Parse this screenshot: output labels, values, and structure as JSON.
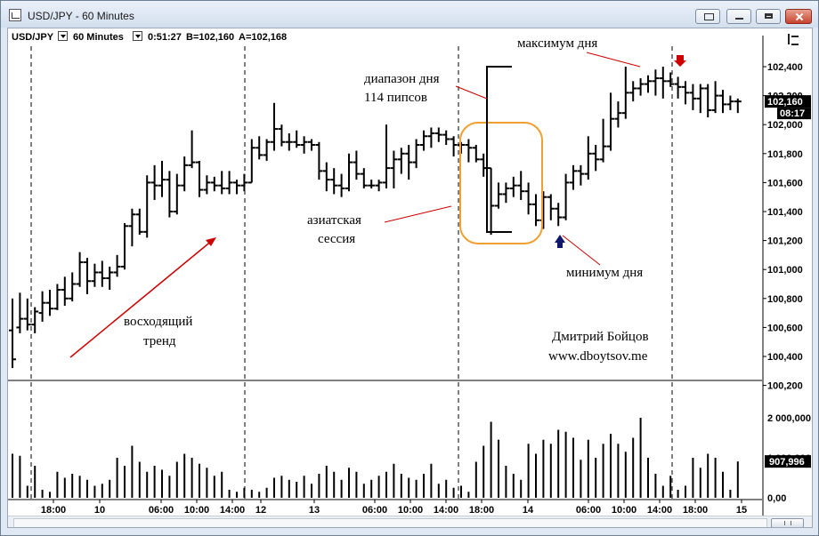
{
  "window": {
    "title": "USD/JPY - 60 Minutes"
  },
  "toolbar": {
    "symbol": "USD/JPY",
    "interval": "60 Minutes",
    "timer": "0:51:27",
    "bid": "B=102,160",
    "ask": "A=102,168",
    "settings_icon": "chart-properties-icon"
  },
  "price_axis": {
    "labels": [
      "102,400",
      "102,200",
      "102,000",
      "101,800",
      "101,600",
      "101,400",
      "101,200",
      "101,000",
      "100,800",
      "100,600",
      "100,400",
      "100,200"
    ],
    "current_price": "102,160",
    "countdown": "08:17"
  },
  "volume_axis": {
    "labels": [
      "2 000,000",
      "1 000,000",
      "0,00"
    ],
    "current_volume": "907,996"
  },
  "time_axis": {
    "labels": [
      "18:00",
      "10",
      "06:00",
      "10:00",
      "14:00",
      "12",
      "13",
      "06:00",
      "10:00",
      "14:00",
      "18:00",
      "14",
      "06:00",
      "10:00",
      "14:00",
      "18:00",
      "15"
    ]
  },
  "annotations": {
    "day_high": "максимум дня",
    "day_range_line1": "диапазон дня",
    "day_range_line2": "114 пипсов",
    "asian_line1": "азиатская",
    "asian_line2": "сессия",
    "day_low": "минимум дня",
    "trend_line1": "восходящий",
    "trend_line2": "тренд",
    "author": "Дмитрий Бойцов",
    "site": "www.dboytsov.me"
  },
  "colors": {
    "arrow_red": "#cc0000",
    "arrow_navy": "#10186a",
    "session_box": "#f0a030"
  },
  "chart_data": {
    "type": "bar",
    "subtype": "ohlc-with-volume",
    "symbol": "USD/JPY",
    "interval": "60 Minutes",
    "price_ylim": [
      100.2,
      102.5
    ],
    "volume_ylim": [
      0,
      2500000
    ],
    "bars": [
      [
        100.58,
        100.8,
        100.32,
        100.38,
        1100000
      ],
      [
        100.6,
        100.84,
        100.56,
        100.66,
        1050000
      ],
      [
        100.66,
        100.8,
        100.58,
        100.62,
        300000
      ],
      [
        100.62,
        100.74,
        100.56,
        100.71,
        800000
      ],
      [
        100.7,
        100.85,
        100.64,
        100.77,
        200000
      ],
      [
        100.77,
        100.86,
        100.68,
        100.73,
        150000
      ],
      [
        100.73,
        100.9,
        100.72,
        100.86,
        650000
      ],
      [
        100.86,
        100.95,
        100.75,
        100.8,
        500000
      ],
      [
        100.8,
        100.98,
        100.78,
        100.9,
        600000
      ],
      [
        100.9,
        101.12,
        100.88,
        101.05,
        550000
      ],
      [
        101.05,
        101.08,
        100.83,
        100.92,
        450000
      ],
      [
        100.92,
        101.04,
        100.88,
        100.98,
        300000
      ],
      [
        100.98,
        101.06,
        100.88,
        100.94,
        350000
      ],
      [
        100.94,
        101.02,
        100.86,
        100.98,
        450000
      ],
      [
        100.98,
        101.1,
        100.95,
        101.02,
        1000000
      ],
      [
        101.02,
        101.32,
        101.0,
        101.3,
        800000
      ],
      [
        101.3,
        101.42,
        101.16,
        101.38,
        1300000
      ],
      [
        101.38,
        101.42,
        101.24,
        101.26,
        900000
      ],
      [
        101.26,
        101.65,
        101.22,
        101.6,
        650000
      ],
      [
        101.6,
        101.72,
        101.48,
        101.58,
        800000
      ],
      [
        101.58,
        101.75,
        101.5,
        101.62,
        700000
      ],
      [
        101.62,
        101.68,
        101.36,
        101.4,
        550000
      ],
      [
        101.4,
        101.66,
        101.38,
        101.58,
        900000
      ],
      [
        101.58,
        101.78,
        101.54,
        101.72,
        1100000
      ],
      [
        101.72,
        101.96,
        101.7,
        101.74,
        1000000
      ],
      [
        101.74,
        101.75,
        101.5,
        101.55,
        850000
      ],
      [
        101.55,
        101.65,
        101.52,
        101.6,
        750000
      ],
      [
        101.6,
        101.64,
        101.54,
        101.58,
        550000
      ],
      [
        101.58,
        101.68,
        101.52,
        101.56,
        650000
      ],
      [
        101.56,
        101.68,
        101.52,
        101.6,
        200000
      ],
      [
        101.6,
        101.62,
        101.52,
        101.58,
        150000
      ],
      [
        101.58,
        101.66,
        101.54,
        101.6,
        250000
      ],
      [
        101.6,
        101.9,
        101.6,
        101.84,
        200000
      ],
      [
        101.84,
        101.92,
        101.76,
        101.79,
        150000
      ],
      [
        101.79,
        101.9,
        101.75,
        101.88,
        250000
      ],
      [
        101.88,
        102.15,
        101.82,
        101.97,
        500000
      ],
      [
        101.97,
        102.0,
        101.85,
        101.88,
        550000
      ],
      [
        101.88,
        101.94,
        101.82,
        101.88,
        450000
      ],
      [
        101.88,
        101.96,
        101.84,
        101.86,
        400000
      ],
      [
        101.86,
        101.92,
        101.8,
        101.88,
        550000
      ],
      [
        101.88,
        101.9,
        101.82,
        101.86,
        350000
      ],
      [
        101.86,
        101.88,
        101.62,
        101.68,
        600000
      ],
      [
        101.68,
        101.74,
        101.54,
        101.62,
        800000
      ],
      [
        101.62,
        101.7,
        101.52,
        101.58,
        650000
      ],
      [
        101.58,
        101.66,
        101.5,
        101.56,
        450000
      ],
      [
        101.56,
        101.8,
        101.54,
        101.74,
        750000
      ],
      [
        101.74,
        101.82,
        101.62,
        101.66,
        650000
      ],
      [
        101.66,
        101.7,
        101.56,
        101.58,
        350000
      ],
      [
        101.58,
        101.62,
        101.56,
        101.58,
        450000
      ],
      [
        101.58,
        101.62,
        101.54,
        101.6,
        550000
      ],
      [
        101.6,
        102.0,
        101.56,
        101.7,
        650000
      ],
      [
        101.7,
        101.82,
        101.56,
        101.76,
        850000
      ],
      [
        101.76,
        101.84,
        101.66,
        101.8,
        600000
      ],
      [
        101.8,
        101.86,
        101.62,
        101.74,
        500000
      ],
      [
        101.74,
        101.9,
        101.7,
        101.86,
        450000
      ],
      [
        101.86,
        101.96,
        101.82,
        101.92,
        600000
      ],
      [
        101.92,
        101.98,
        101.84,
        101.94,
        850000
      ],
      [
        101.94,
        101.98,
        101.88,
        101.93,
        350000
      ],
      [
        101.93,
        101.96,
        101.86,
        101.9,
        450000
      ],
      [
        101.9,
        101.92,
        101.78,
        101.86,
        250000
      ],
      [
        101.86,
        101.88,
        101.8,
        101.86,
        300000
      ],
      [
        101.86,
        101.9,
        101.74,
        101.84,
        150000
      ],
      [
        101.84,
        101.86,
        101.74,
        101.76,
        900000
      ],
      [
        101.76,
        101.8,
        101.64,
        101.7,
        1300000
      ],
      [
        101.7,
        101.7,
        101.24,
        101.44,
        1900000
      ],
      [
        101.44,
        101.6,
        101.42,
        101.52,
        1450000
      ],
      [
        101.52,
        101.6,
        101.46,
        101.56,
        800000
      ],
      [
        101.56,
        101.64,
        101.5,
        101.58,
        600000
      ],
      [
        101.58,
        101.68,
        101.48,
        101.54,
        450000
      ],
      [
        101.54,
        101.6,
        101.38,
        101.45,
        1350000
      ],
      [
        101.45,
        101.52,
        101.3,
        101.34,
        1100000
      ],
      [
        101.34,
        101.54,
        101.28,
        101.5,
        1450000
      ],
      [
        101.5,
        101.52,
        101.34,
        101.42,
        1350000
      ],
      [
        101.42,
        101.46,
        101.3,
        101.36,
        1700000
      ],
      [
        101.36,
        101.66,
        101.34,
        101.6,
        1650000
      ],
      [
        101.6,
        101.72,
        101.55,
        101.68,
        1500000
      ],
      [
        101.68,
        101.72,
        101.58,
        101.66,
        950000
      ],
      [
        101.66,
        101.92,
        101.62,
        101.8,
        1450000
      ],
      [
        101.8,
        101.86,
        101.68,
        101.76,
        1000000
      ],
      [
        101.76,
        102.04,
        101.74,
        101.85,
        1350000
      ],
      [
        101.85,
        102.22,
        101.82,
        102.04,
        1600000
      ],
      [
        102.04,
        102.16,
        101.98,
        102.08,
        1350000
      ],
      [
        102.08,
        102.4,
        102.04,
        102.22,
        1150000
      ],
      [
        102.22,
        102.3,
        102.16,
        102.25,
        1500000
      ],
      [
        102.25,
        102.32,
        102.2,
        102.28,
        2000000
      ],
      [
        102.28,
        102.34,
        102.22,
        102.3,
        1000000
      ],
      [
        102.3,
        102.38,
        102.2,
        102.32,
        600000
      ],
      [
        102.32,
        102.4,
        102.18,
        102.3,
        300000
      ],
      [
        102.3,
        102.36,
        102.26,
        102.28,
        550000
      ],
      [
        102.28,
        102.33,
        102.18,
        102.26,
        200000
      ],
      [
        102.26,
        102.3,
        102.14,
        102.22,
        300000
      ],
      [
        102.22,
        102.28,
        102.1,
        102.18,
        1000000
      ],
      [
        102.18,
        102.28,
        102.08,
        102.25,
        750000
      ],
      [
        102.25,
        102.28,
        102.05,
        102.1,
        1100000
      ],
      [
        102.1,
        102.3,
        102.08,
        102.2,
        1000000
      ],
      [
        102.2,
        102.24,
        102.08,
        102.14,
        650000
      ],
      [
        102.14,
        102.2,
        102.1,
        102.16,
        200000
      ],
      [
        102.16,
        102.18,
        102.08,
        102.16,
        907996
      ]
    ],
    "day_high": 102.4,
    "day_low": 101.26,
    "day_range_pips": 114
  }
}
